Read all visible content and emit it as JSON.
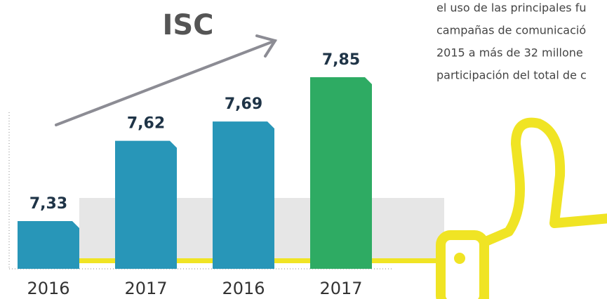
{
  "chart_data": {
    "type": "bar",
    "title": "ISC",
    "categories": [
      "2016",
      "2017",
      "2016",
      "2017"
    ],
    "values": [
      7.33,
      7.62,
      7.69,
      7.85
    ],
    "value_labels": [
      "7,33",
      "7,62",
      "7,69",
      "7,85"
    ],
    "colors": [
      "#2896b8",
      "#2896b8",
      "#2896b8",
      "#2eab63"
    ],
    "annotations": [
      "el uso de las principales fu",
      "campañas de comunicació",
      "2015 a más de 32 millone",
      "participación del total de c"
    ]
  }
}
